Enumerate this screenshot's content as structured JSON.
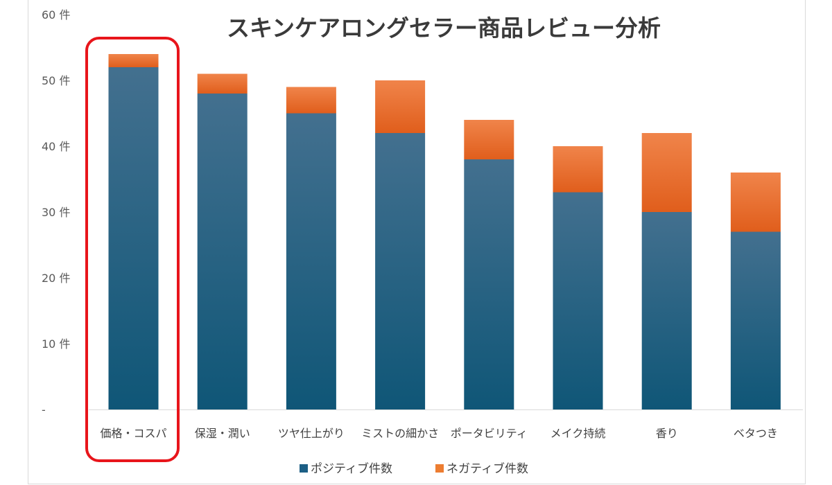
{
  "chart_data": {
    "type": "bar",
    "stacked": true,
    "title": "スキンケアロングセラー商品レビュー分析",
    "categories": [
      "価格・コスパ",
      "保湿・潤い",
      "ツヤ仕上がり",
      "ミストの細かさ",
      "ポータビリティ",
      "メイク持続",
      "香り",
      "ベタつき"
    ],
    "series": [
      {
        "name": "ポジティブ件数",
        "color": "#1c5f85",
        "values": [
          52,
          48,
          45,
          42,
          38,
          33,
          30,
          27
        ]
      },
      {
        "name": "ネガティブ件数",
        "color": "#ed7d31",
        "values": [
          2,
          3,
          4,
          8,
          6,
          7,
          12,
          9
        ]
      }
    ],
    "ylim": [
      0,
      60
    ],
    "yticks": [
      {
        "value": 0,
        "label": "-"
      },
      {
        "value": 10,
        "label": "10 件"
      },
      {
        "value": 20,
        "label": "20 件"
      },
      {
        "value": 30,
        "label": "30 件"
      },
      {
        "value": 40,
        "label": "40 件"
      },
      {
        "value": 50,
        "label": "50 件"
      },
      {
        "value": 60,
        "label": "60 件"
      }
    ],
    "grid": false,
    "legend_position": "bottom",
    "highlight_category": "価格・コスパ",
    "highlight_color": "#e8151b"
  }
}
